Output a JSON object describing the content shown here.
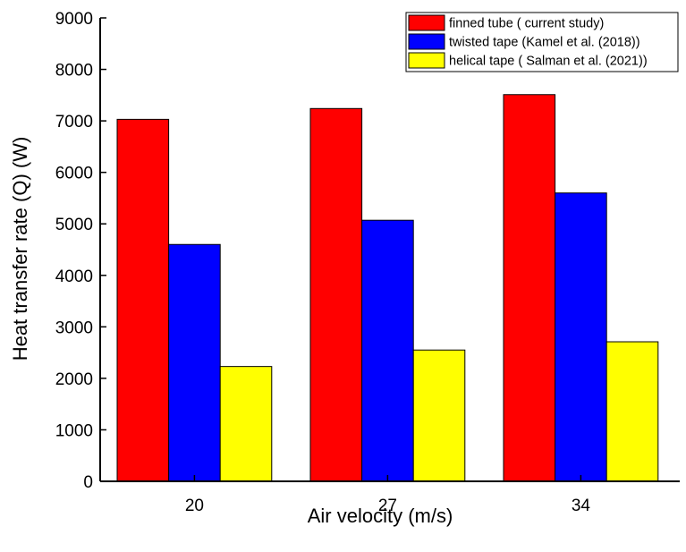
{
  "chart_data": {
    "type": "bar",
    "xlabel": "Air velocity (m/s)",
    "ylabel": "Heat transfer rate (Q) (W)",
    "ylim": [
      0,
      9000
    ],
    "yticks": [
      0,
      1000,
      2000,
      3000,
      4000,
      5000,
      6000,
      7000,
      8000,
      9000
    ],
    "categories": [
      "20",
      "27",
      "34"
    ],
    "legend_position": "top-right",
    "grid": false,
    "series": [
      {
        "name": "finned tube ( current study)",
        "color": "#ff0000",
        "values": [
          7030,
          7240,
          7510
        ]
      },
      {
        "name": "twisted tape (Kamel et al. (2018))",
        "color": "#0000ff",
        "values": [
          4600,
          5070,
          5600
        ]
      },
      {
        "name": "helical tape ( Salman et al. (2021))",
        "color": "#ffff00",
        "values": [
          2230,
          2550,
          2710
        ]
      }
    ]
  }
}
